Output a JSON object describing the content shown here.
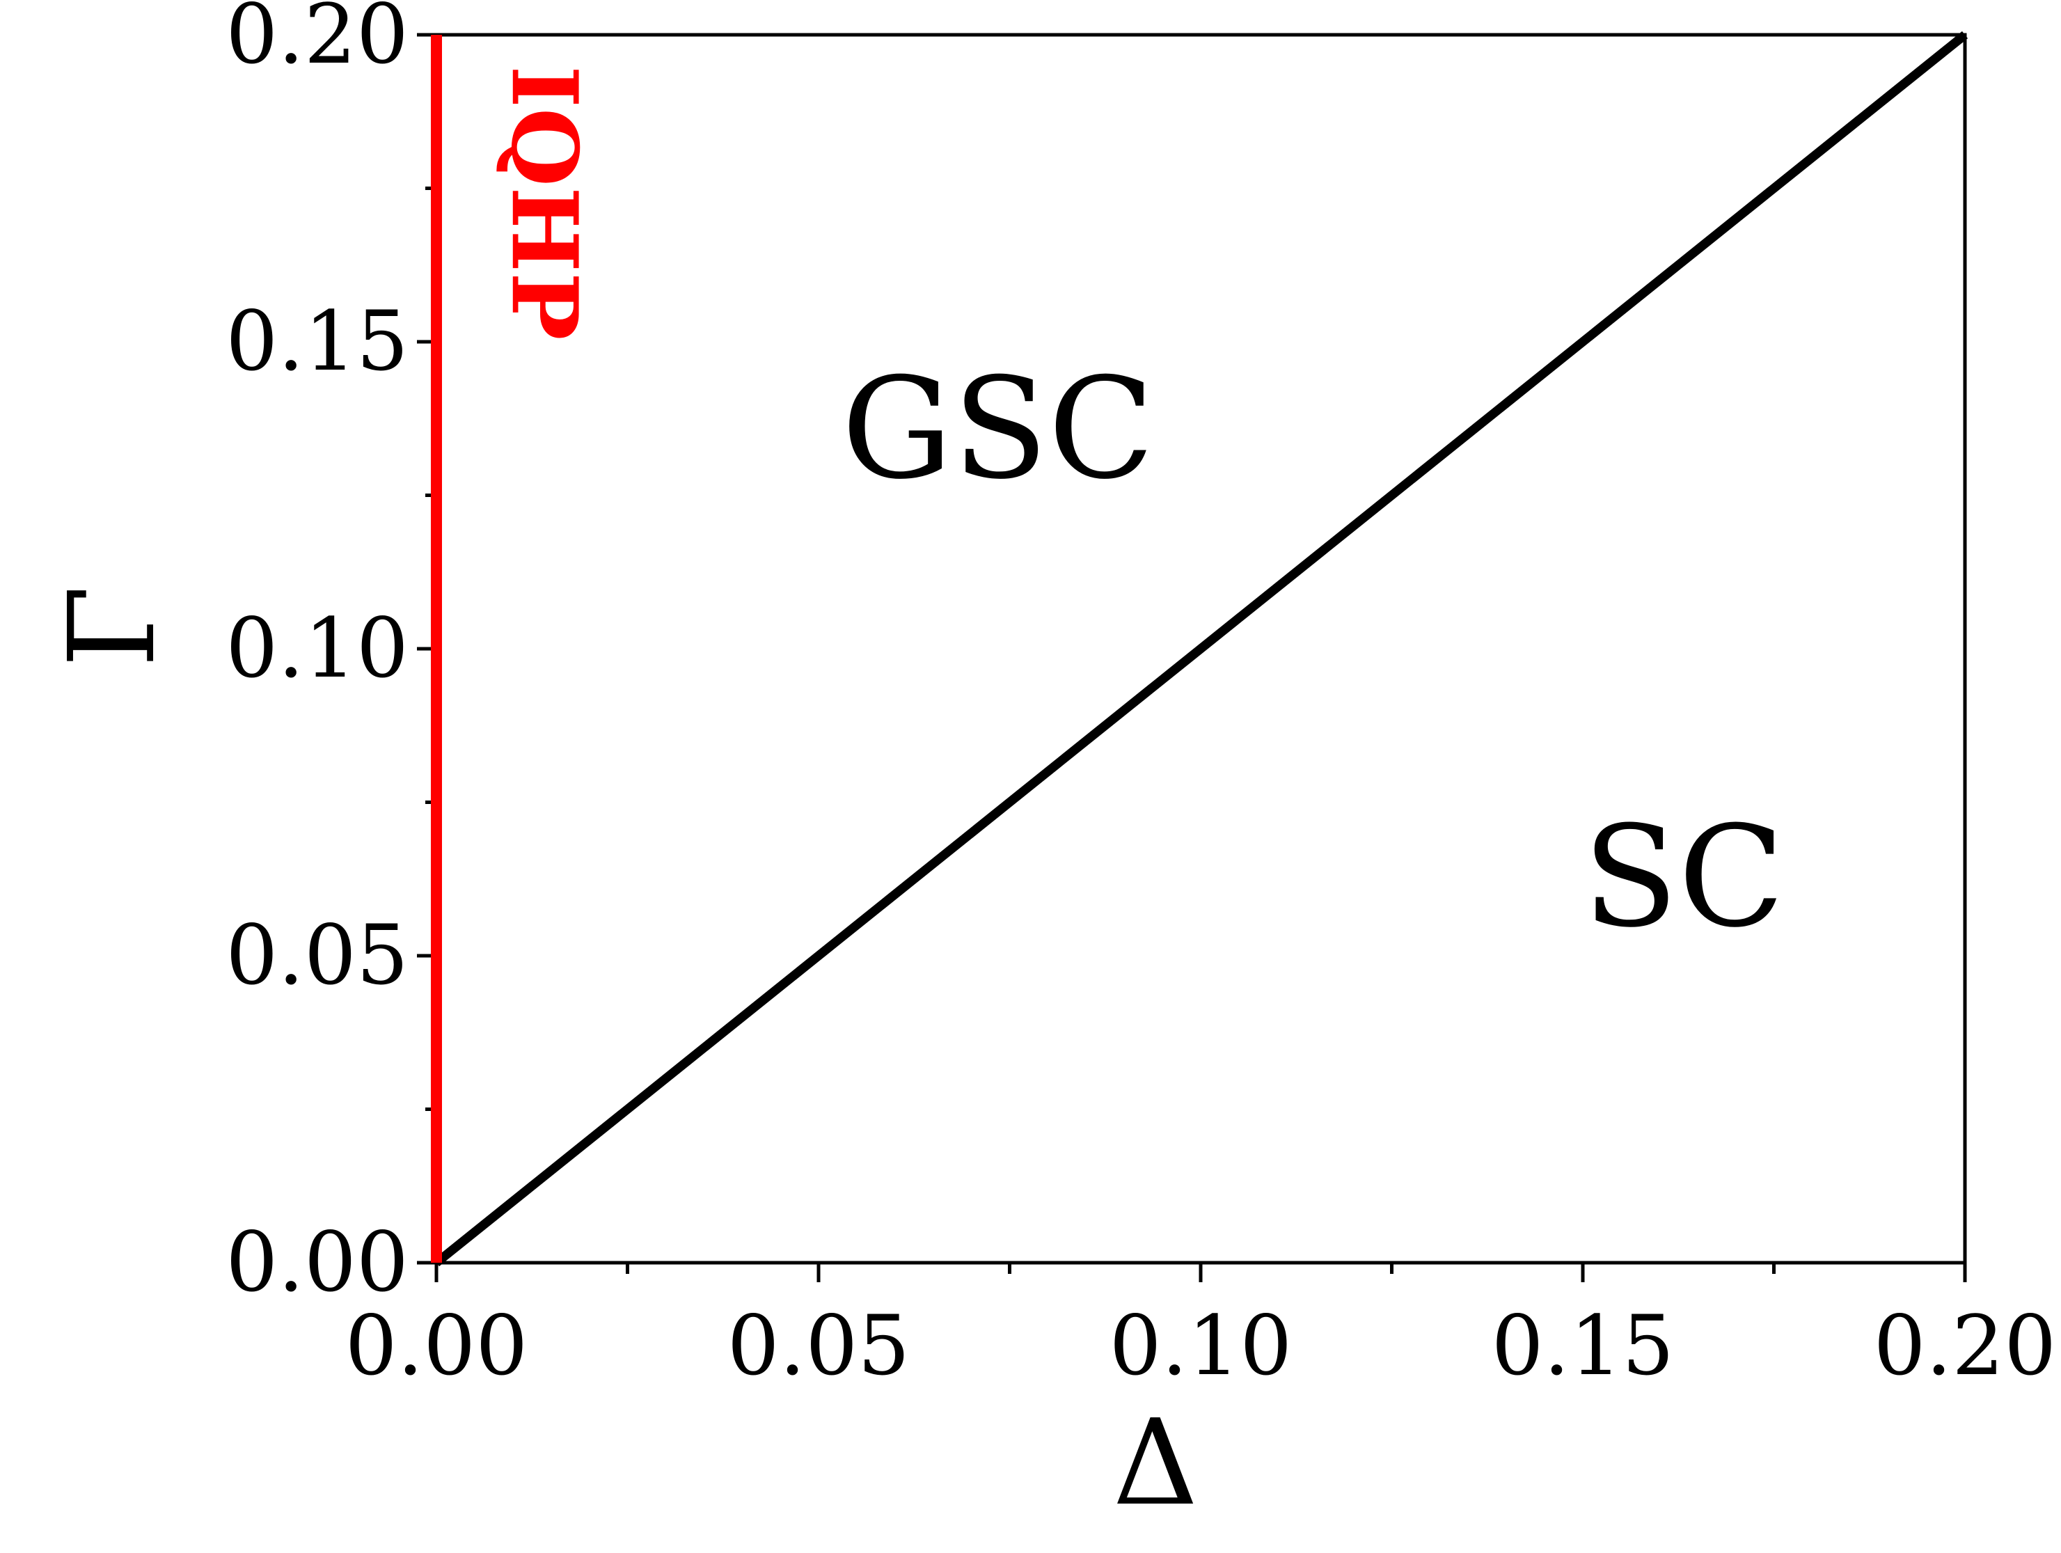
{
  "chart_data": {
    "type": "line",
    "title": "",
    "xlabel": "Δ",
    "ylabel": "Γ",
    "xlim": [
      0,
      0.2
    ],
    "ylim": [
      0,
      0.2
    ],
    "x_ticks": [
      "0.00",
      "0.05",
      "0.10",
      "0.15",
      "0.20"
    ],
    "y_ticks": [
      "0.00",
      "0.05",
      "0.10",
      "0.15",
      "0.20"
    ],
    "x_tick_values": [
      0,
      0.05,
      0.1,
      0.15,
      0.2
    ],
    "y_tick_values": [
      0,
      0.05,
      0.1,
      0.15,
      0.2
    ],
    "x_minor_ticks": [
      0.025,
      0.075,
      0.125,
      0.175
    ],
    "y_minor_ticks": [
      0.025,
      0.075,
      0.125,
      0.175
    ],
    "grid": false,
    "series": [
      {
        "color": "#000000",
        "x": [
          0,
          0.2
        ],
        "y": [
          0,
          0.2
        ]
      },
      {
        "color": "#ff0000",
        "x": [
          0,
          0
        ],
        "y": [
          0,
          0.2
        ]
      }
    ],
    "annotations": [
      {
        "text": "GSC",
        "x": 0.053,
        "y": 0.128
      },
      {
        "text": "SC",
        "x": 0.15,
        "y": 0.055
      },
      {
        "text": "IQHP",
        "x": 0.01,
        "y": 0.195,
        "color": "#ff0000",
        "rotation": 90
      }
    ]
  }
}
